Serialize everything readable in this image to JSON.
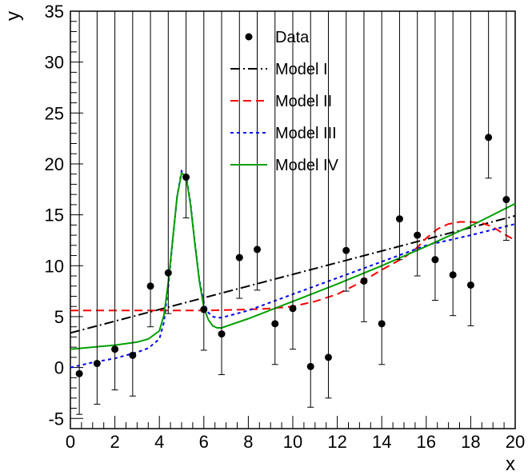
{
  "chart_data": {
    "type": "scatter",
    "title": "",
    "xlabel": "x",
    "ylabel": "y",
    "xlim": [
      0,
      20
    ],
    "ylim": [
      -6,
      35
    ],
    "xticks": [
      0,
      2,
      4,
      6,
      8,
      10,
      12,
      14,
      16,
      18,
      20
    ],
    "yticks": [
      -5,
      0,
      5,
      10,
      15,
      20,
      25,
      30,
      35
    ],
    "legend_position": "top-center",
    "data": {
      "name": "Data",
      "color": "#000000",
      "x": [
        0.4,
        1.2,
        2.0,
        2.8,
        3.6,
        4.4,
        5.2,
        6.0,
        6.8,
        7.6,
        8.4,
        9.2,
        10.0,
        10.8,
        11.6,
        12.4,
        13.2,
        14.0,
        14.8,
        15.6,
        16.4,
        17.2,
        18.0,
        18.8,
        19.6
      ],
      "y": [
        -0.6,
        0.4,
        1.8,
        1.2,
        8.0,
        9.3,
        18.7,
        5.7,
        3.3,
        10.8,
        11.6,
        4.3,
        5.8,
        0.1,
        1.0,
        11.5,
        8.5,
        4.3,
        14.6,
        13.0,
        10.6,
        9.1,
        8.1,
        22.6,
        16.5
      ],
      "yerr": [
        4.0,
        4.0,
        4.0,
        4.0,
        4.0,
        4.0,
        4.0,
        4.0,
        4.0,
        4.0,
        4.0,
        4.0,
        4.0,
        4.0,
        4.0,
        4.0,
        4.0,
        4.0,
        4.0,
        4.0,
        4.0,
        4.0,
        4.0,
        4.0,
        4.0
      ]
    },
    "series": [
      {
        "name": "Model I",
        "color": "#000000",
        "dash": "dash-dot",
        "x": [
          0,
          20
        ],
        "y": [
          3.4,
          14.9
        ]
      },
      {
        "name": "Model II",
        "color": "#ff0000",
        "dash": "dashed",
        "x": [
          0,
          2,
          4,
          6,
          8,
          9,
          10,
          11,
          12,
          13,
          14,
          15,
          15.5,
          16,
          16.5,
          17,
          17.5,
          18,
          18.5,
          19,
          19.5,
          20
        ],
        "y": [
          5.6,
          5.6,
          5.6,
          5.6,
          5.7,
          5.8,
          6.0,
          6.5,
          7.2,
          8.3,
          9.6,
          10.8,
          11.6,
          12.7,
          13.6,
          14.1,
          14.3,
          14.3,
          14.2,
          13.8,
          13.1,
          12.5
        ]
      },
      {
        "name": "Model III",
        "color": "#0000ff",
        "dash": "dotted",
        "x": [
          0,
          1,
          2,
          3,
          3.5,
          4.0,
          4.2,
          4.4,
          4.6,
          4.8,
          5.0,
          5.2,
          5.4,
          5.6,
          5.8,
          6.0,
          6.2,
          6.4,
          6.6,
          6.8,
          8,
          10,
          12,
          14,
          16,
          18,
          20
        ],
        "y": [
          0.0,
          0.5,
          0.9,
          1.5,
          1.9,
          2.8,
          4.4,
          7.9,
          12.5,
          16.8,
          19.3,
          18.9,
          16.2,
          12.2,
          8.6,
          6.4,
          5.4,
          5.0,
          4.9,
          4.9,
          5.6,
          7.2,
          8.8,
          10.4,
          12.0,
          13.0,
          14.1
        ]
      },
      {
        "name": "Model IV",
        "color": "#00a000",
        "dash": "solid",
        "x": [
          0,
          1,
          2,
          3,
          3.5,
          4.0,
          4.2,
          4.4,
          4.6,
          4.8,
          5.0,
          5.2,
          5.4,
          5.6,
          5.8,
          6.0,
          6.2,
          6.4,
          6.6,
          6.8,
          8,
          10,
          12,
          14,
          16,
          18,
          20
        ],
        "y": [
          1.8,
          2.0,
          2.2,
          2.5,
          2.8,
          3.6,
          5.1,
          8.3,
          12.6,
          16.8,
          19.1,
          18.8,
          16.0,
          12.1,
          8.5,
          5.9,
          4.7,
          4.1,
          3.9,
          3.9,
          4.8,
          6.5,
          8.2,
          10.0,
          11.9,
          13.9,
          16.1
        ]
      }
    ]
  }
}
